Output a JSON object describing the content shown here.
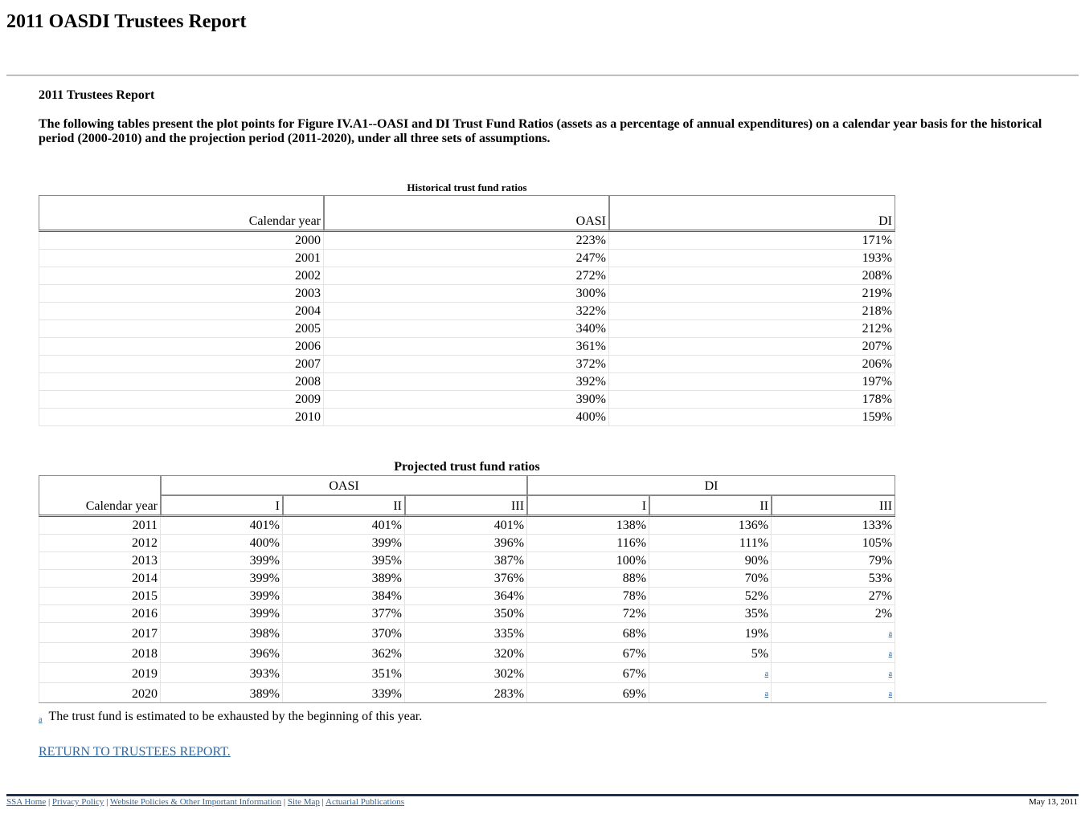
{
  "page": {
    "title": "2011 OASDI Trustees Report",
    "section_title": "2011 Trustees Report",
    "intro": "The following tables present the plot points for Figure IV.A1--OASI and DI Trust Fund Ratios (assets as a percentage of annual expenditures) on a calendar year basis for the historical period (2000-2010) and the projection period (2011-2020), under all three sets of assumptions."
  },
  "historical": {
    "caption": "Historical trust fund ratios",
    "headers": [
      "Calendar year",
      "OASI",
      "DI"
    ],
    "rows": [
      [
        "2000",
        "223%",
        "171%"
      ],
      [
        "2001",
        "247%",
        "193%"
      ],
      [
        "2002",
        "272%",
        "208%"
      ],
      [
        "2003",
        "300%",
        "219%"
      ],
      [
        "2004",
        "322%",
        "218%"
      ],
      [
        "2005",
        "340%",
        "212%"
      ],
      [
        "2006",
        "361%",
        "207%"
      ],
      [
        "2007",
        "372%",
        "206%"
      ],
      [
        "2008",
        "392%",
        "197%"
      ],
      [
        "2009",
        "390%",
        "178%"
      ],
      [
        "2010",
        "400%",
        "159%"
      ]
    ]
  },
  "projected": {
    "caption": "Projected trust fund ratios",
    "year_header": "Calendar year",
    "groups": [
      "OASI",
      "DI"
    ],
    "subheaders": [
      "I",
      "II",
      "III",
      "I",
      "II",
      "III"
    ],
    "rows": [
      [
        "2011",
        "401%",
        "401%",
        "401%",
        "138%",
        "136%",
        "133%"
      ],
      [
        "2012",
        "400%",
        "399%",
        "396%",
        "116%",
        "111%",
        "105%"
      ],
      [
        "2013",
        "399%",
        "395%",
        "387%",
        "100%",
        "90%",
        "79%"
      ],
      [
        "2014",
        "399%",
        "389%",
        "376%",
        "88%",
        "70%",
        "53%"
      ],
      [
        "2015",
        "399%",
        "384%",
        "364%",
        "78%",
        "52%",
        "27%"
      ],
      [
        "2016",
        "399%",
        "377%",
        "350%",
        "72%",
        "35%",
        "2%"
      ],
      [
        "2017",
        "398%",
        "370%",
        "335%",
        "68%",
        "19%",
        "a"
      ],
      [
        "2018",
        "396%",
        "362%",
        "320%",
        "67%",
        "5%",
        "a"
      ],
      [
        "2019",
        "393%",
        "351%",
        "302%",
        "67%",
        "a",
        "a"
      ],
      [
        "2020",
        "389%",
        "339%",
        "283%",
        "69%",
        "a",
        "a"
      ]
    ]
  },
  "footnote": {
    "mark": "a",
    "text": "The trust fund is estimated to be exhausted by the beginning of this year."
  },
  "return_link": "RETURN TO TRUSTEES REPORT.",
  "footer": {
    "links": [
      "SSA Home",
      "Privacy Policy",
      "Website Policies & Other Important Information",
      "Site Map",
      "Actuarial Publications"
    ],
    "separator": "|",
    "date": "May 13, 2011"
  }
}
